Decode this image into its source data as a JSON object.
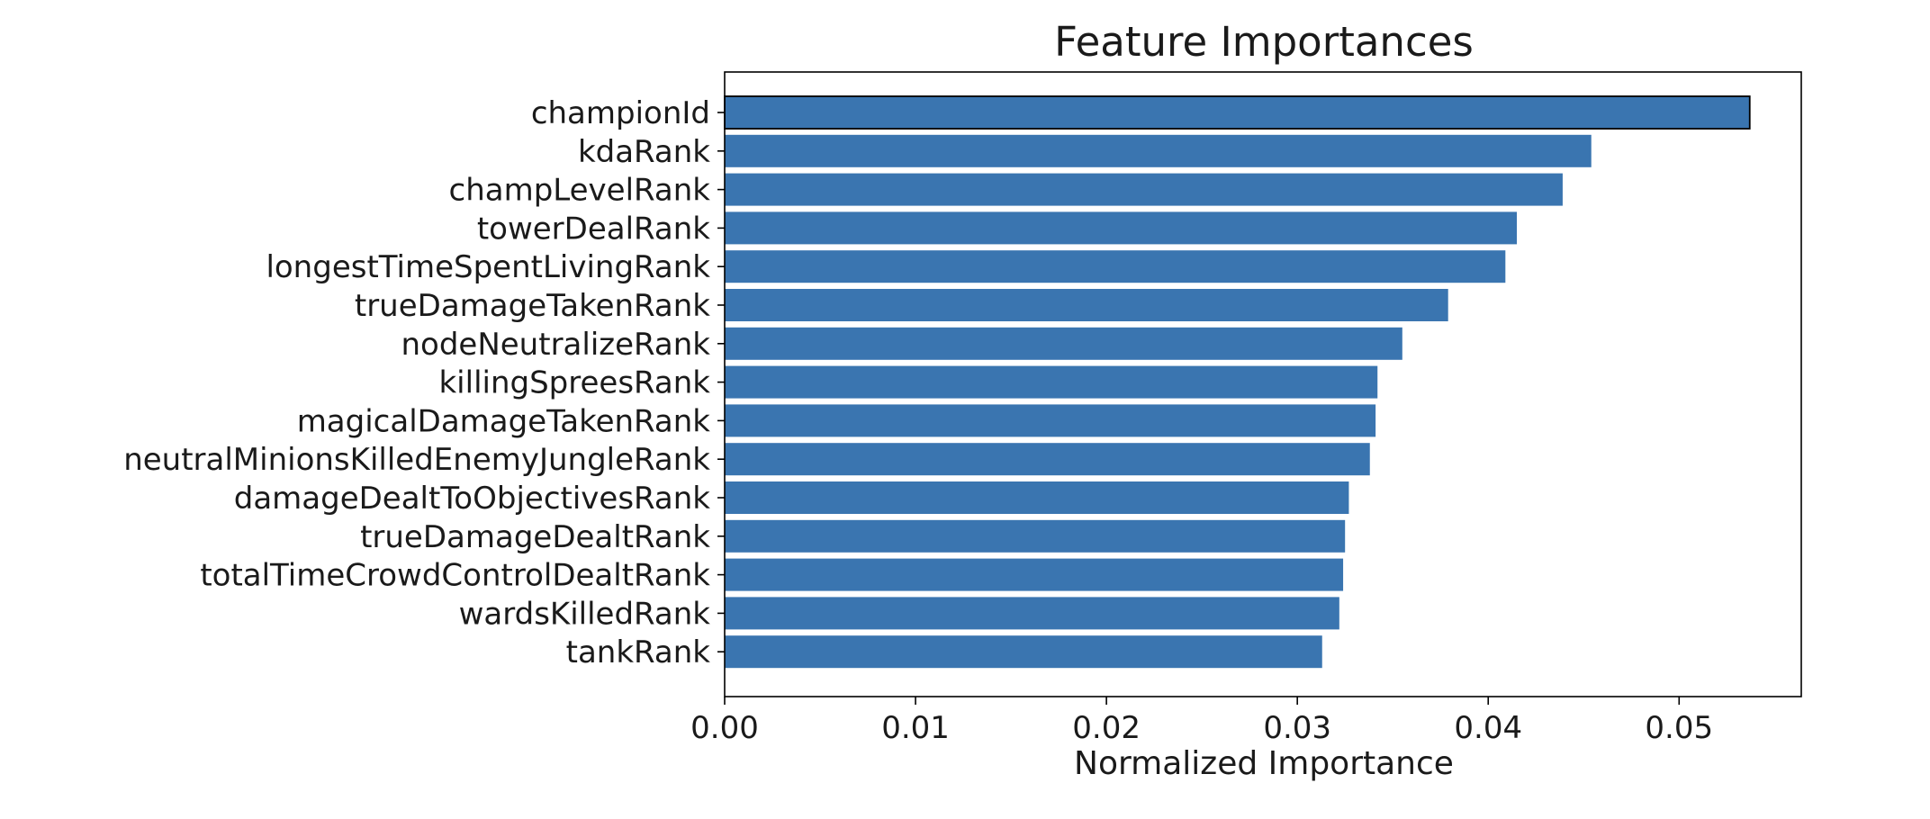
{
  "chart_data": {
    "type": "bar",
    "orientation": "horizontal",
    "title": "Feature Importances",
    "xlabel": "Normalized Importance",
    "ylabel": "",
    "xlim": [
      0,
      0.0564
    ],
    "x_ticks": [
      {
        "value": 0.0,
        "label": "0.00"
      },
      {
        "value": 0.01,
        "label": "0.01"
      },
      {
        "value": 0.02,
        "label": "0.02"
      },
      {
        "value": 0.03,
        "label": "0.03"
      },
      {
        "value": 0.04,
        "label": "0.04"
      },
      {
        "value": 0.05,
        "label": "0.05"
      }
    ],
    "grid": false,
    "bar_color": "#3a75b0",
    "highlight_edge_color": "#000000",
    "categories": [
      "championId",
      "kdaRank",
      "champLevelRank",
      "towerDealRank",
      "longestTimeSpentLivingRank",
      "trueDamageTakenRank",
      "nodeNeutralizeRank",
      "killingSpreesRank",
      "magicalDamageTakenRank",
      "neutralMinionsKilledEnemyJungleRank",
      "damageDealtToObjectivesRank",
      "trueDamageDealtRank",
      "totalTimeCrowdControlDealtRank",
      "wardsKilledRank",
      "tankRank"
    ],
    "values": [
      0.0537,
      0.0454,
      0.0439,
      0.0415,
      0.0409,
      0.0379,
      0.0355,
      0.0342,
      0.0341,
      0.0338,
      0.0327,
      0.0325,
      0.0324,
      0.0322,
      0.0313
    ]
  }
}
